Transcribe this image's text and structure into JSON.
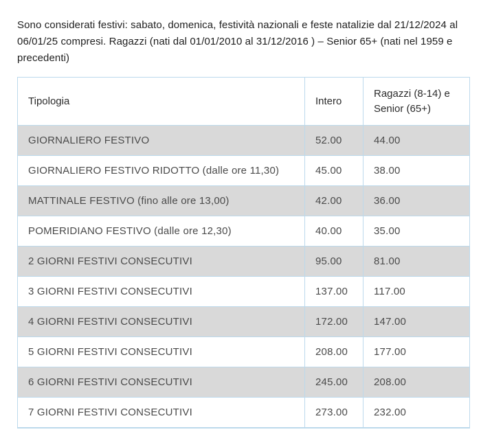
{
  "intro": {
    "text": "Sono considerati festivi: sabato, domenica, festività nazionali e feste natalizie dal 21/12/2024 al 06/01/25 compresi. Ragazzi (nati dal 01/01/2010 al 31/12/2016 ) – Senior 65+ (nati nel 1959 e precedenti)"
  },
  "table": {
    "headers": {
      "tipologia": "Tipologia",
      "intero": "Intero",
      "ragazzi": "Ragazzi (8-14) e Senior (65+)"
    },
    "rows": [
      {
        "tipologia": "GIORNALIERO FESTIVO",
        "intero": "52.00",
        "ragazzi": "44.00"
      },
      {
        "tipologia": "GIORNALIERO FESTIVO RIDOTTO (dalle ore 11,30)",
        "intero": "45.00",
        "ragazzi": "38.00"
      },
      {
        "tipologia": "MATTINALE FESTIVO (fino alle ore 13,00)",
        "intero": "42.00",
        "ragazzi": "36.00"
      },
      {
        "tipologia": "POMERIDIANO FESTIVO (dalle ore 12,30)",
        "intero": "40.00",
        "ragazzi": "35.00"
      },
      {
        "tipologia": "2 GIORNI FESTIVI CONSECUTIVI",
        "intero": "95.00",
        "ragazzi": "81.00"
      },
      {
        "tipologia": "3 GIORNI FESTIVI CONSECUTIVI",
        "intero": "137.00",
        "ragazzi": "117.00"
      },
      {
        "tipologia": "4 GIORNI FESTIVI CONSECUTIVI",
        "intero": "172.00",
        "ragazzi": "147.00"
      },
      {
        "tipologia": "5 GIORNI FESTIVI CONSECUTIVI",
        "intero": "208.00",
        "ragazzi": "177.00"
      },
      {
        "tipologia": "6 GIORNI FESTIVI CONSECUTIVI",
        "intero": "245.00",
        "ragazzi": "208.00"
      },
      {
        "tipologia": "7 GIORNI FESTIVI CONSECUTIVI",
        "intero": "273.00",
        "ragazzi": "232.00"
      }
    ],
    "colors": {
      "border": "#bcd9ec",
      "row_alt_bg": "#d9d9d9",
      "header_text": "#2b2b2b",
      "cell_text": "#4a4a4a"
    }
  }
}
